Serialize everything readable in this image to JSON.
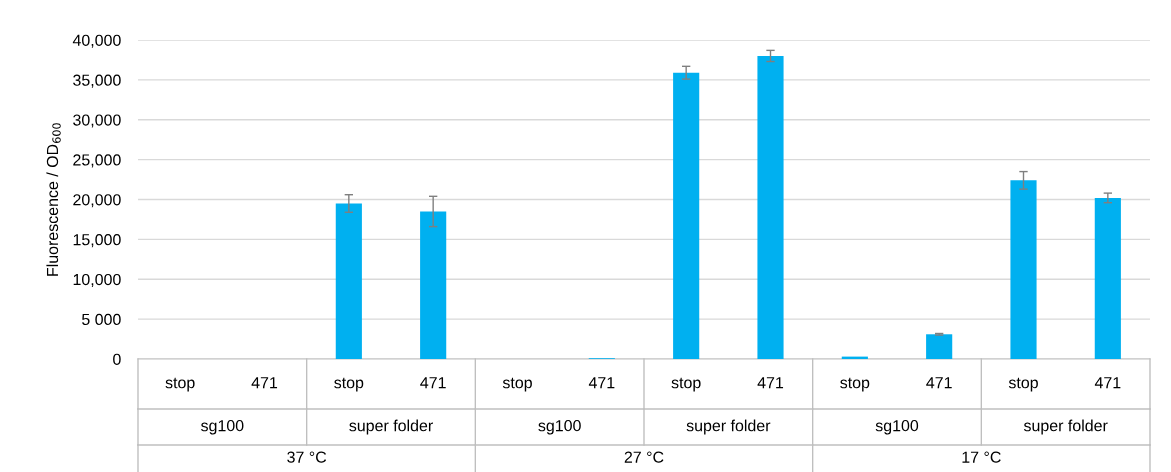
{
  "chart_data": {
    "type": "bar",
    "ylabel": "Fluorescence / OD$_{600}$",
    "categories": [
      "stop",
      "471",
      "stop",
      "471",
      "stop",
      "471",
      "stop",
      "471",
      "stop",
      "471",
      "stop",
      "471"
    ],
    "values": [
      0,
      0,
      19500,
      18500,
      0,
      100,
      35900,
      38000,
      300,
      3100,
      22400,
      20200
    ],
    "errors": [
      null,
      null,
      1100,
      1900,
      null,
      null,
      800,
      700,
      null,
      100,
      1100,
      600
    ],
    "color": "#00b0f0",
    "ylim": [
      0,
      40000
    ],
    "yticks": [
      0,
      {
        "value": 5000,
        "label": "5 000"
      },
      {
        "value": 10000,
        "label": "10,000"
      },
      {
        "value": 15000,
        "label": "15,000"
      },
      {
        "value": 20000,
        "label": "20,000"
      },
      {
        "value": 25000,
        "label": "25,000"
      },
      {
        "value": 30000,
        "label": "30,000"
      },
      {
        "value": 35000,
        "label": "35,000"
      },
      {
        "value": 40000,
        "label": "40,000"
      }
    ],
    "grid": "y",
    "annotations": [
      "sg100",
      "super folder",
      "sg100",
      "super folder",
      "sg100",
      "super folder",
      "37 °C",
      "27 °C",
      "17 °C"
    ]
  }
}
